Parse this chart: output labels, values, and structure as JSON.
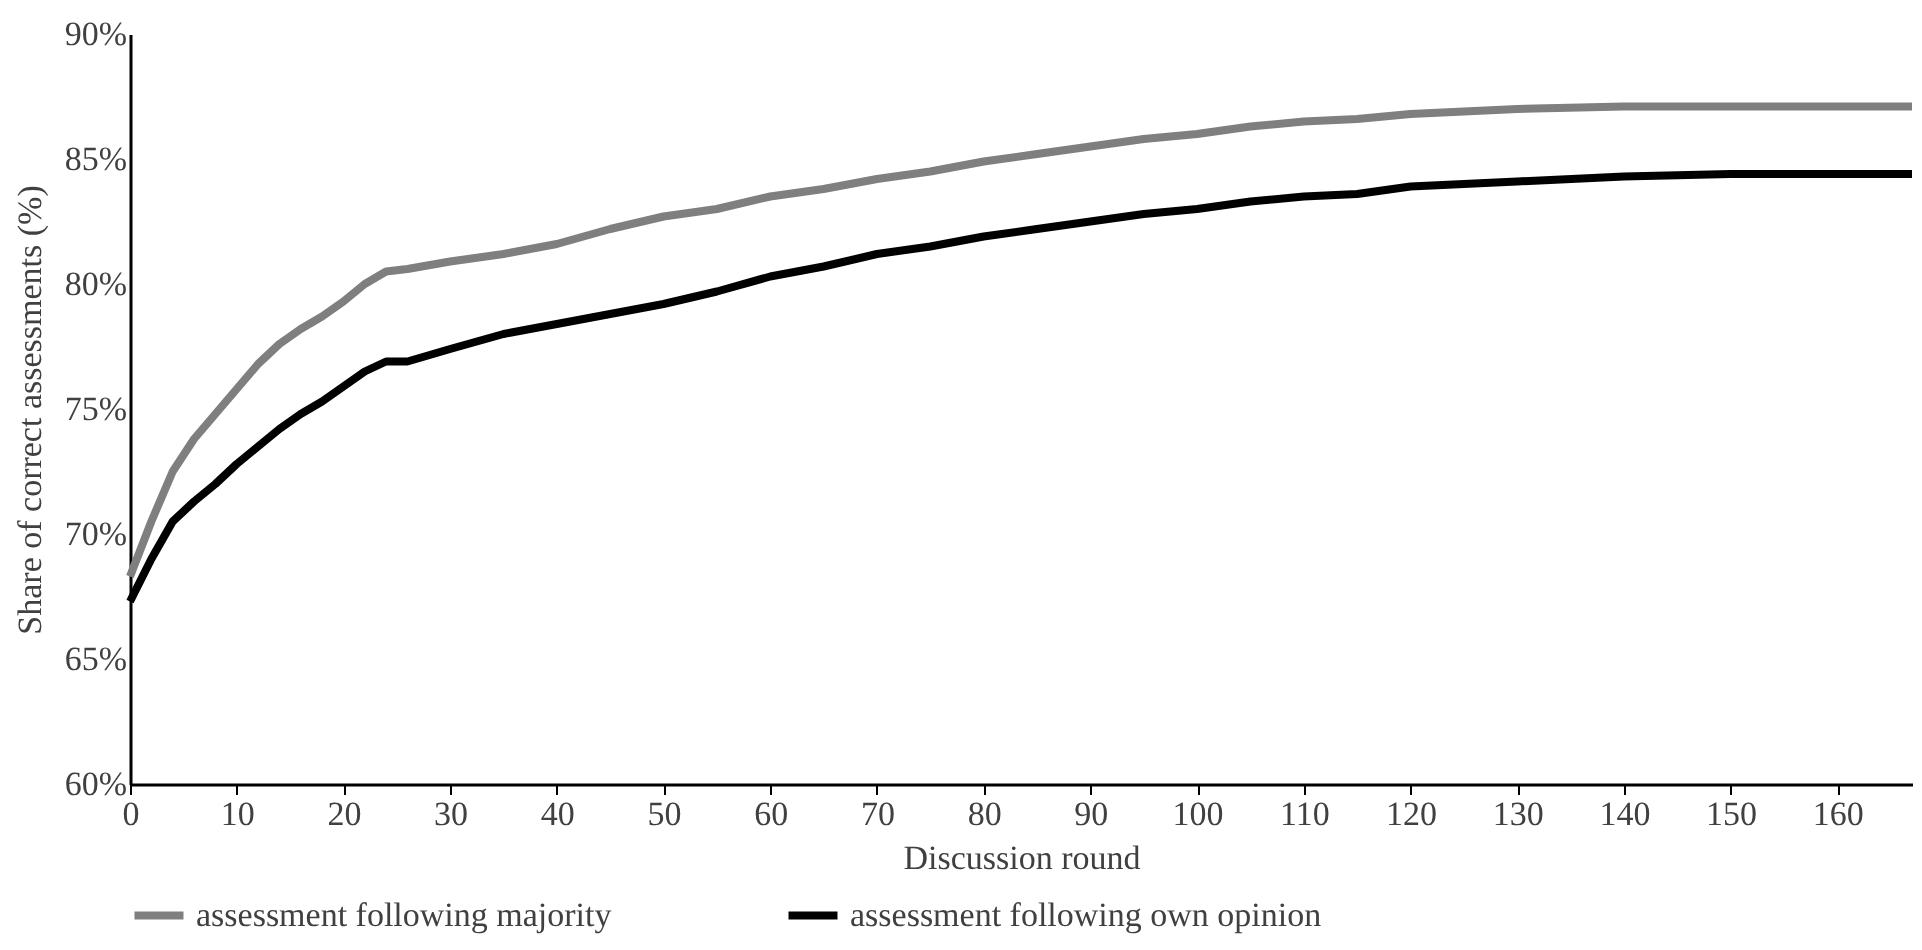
{
  "chart_data": {
    "type": "line",
    "xlabel": "Discussion round",
    "ylabel": "Share of correct assessments (%)",
    "x": [
      0,
      2,
      4,
      6,
      8,
      10,
      12,
      14,
      16,
      18,
      20,
      22,
      24,
      26,
      30,
      35,
      40,
      45,
      50,
      55,
      60,
      65,
      70,
      75,
      80,
      85,
      90,
      95,
      100,
      105,
      110,
      115,
      120,
      125,
      130,
      140,
      150,
      167
    ],
    "series": [
      {
        "name": "assessment following majority",
        "color": "#7f7f7f",
        "values": [
          68.3,
          70.5,
          72.5,
          73.8,
          74.8,
          75.8,
          76.8,
          77.6,
          78.2,
          78.7,
          79.3,
          80.0,
          80.5,
          80.6,
          80.9,
          81.2,
          81.6,
          82.2,
          82.7,
          83.0,
          83.5,
          83.8,
          84.2,
          84.5,
          84.9,
          85.2,
          85.5,
          85.8,
          86.0,
          86.3,
          86.5,
          86.6,
          86.8,
          86.9,
          87.0,
          87.1,
          87.1,
          87.1
        ]
      },
      {
        "name": "assessment following own opinion",
        "color": "#000000",
        "values": [
          67.3,
          69.0,
          70.5,
          71.3,
          72.0,
          72.8,
          73.5,
          74.2,
          74.8,
          75.3,
          75.9,
          76.5,
          76.9,
          76.9,
          77.4,
          78.0,
          78.4,
          78.8,
          79.2,
          79.7,
          80.3,
          80.7,
          81.2,
          81.5,
          81.9,
          82.2,
          82.5,
          82.8,
          83.0,
          83.3,
          83.5,
          83.6,
          83.9,
          84.0,
          84.1,
          84.3,
          84.4,
          84.4
        ]
      }
    ],
    "xlim": [
      0,
      167
    ],
    "xticks": [
      0,
      10,
      20,
      30,
      40,
      50,
      60,
      70,
      80,
      90,
      100,
      110,
      120,
      130,
      140,
      150,
      160
    ],
    "ylim": [
      60,
      90
    ],
    "yticks": [
      {
        "value": 60,
        "label": "60%"
      },
      {
        "value": 65,
        "label": "65%"
      },
      {
        "value": 70,
        "label": "70%"
      },
      {
        "value": 75,
        "label": "75%"
      },
      {
        "value": 80,
        "label": "80%"
      },
      {
        "value": 85,
        "label": "85%"
      },
      {
        "value": 90,
        "label": "90%"
      }
    ],
    "legend": "bottom",
    "grid": false,
    "marker": "none",
    "line_style": "solid"
  }
}
